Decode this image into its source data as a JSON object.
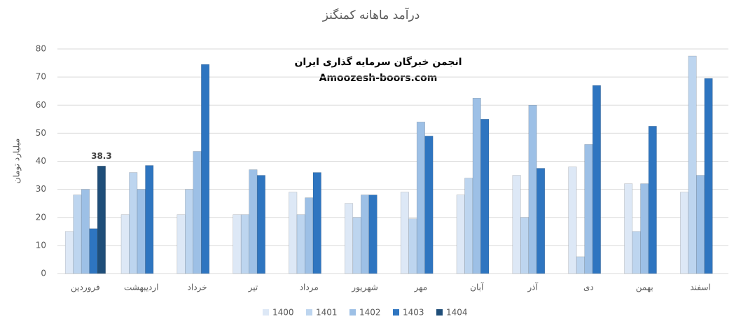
{
  "chart_data": {
    "type": "bar",
    "title": "درآمد ماهانه کمنگنز",
    "y_label": "میلیارد تومان",
    "annotations": [
      "انجمن خبرگان سرمایه گذاری ایران",
      "Amoozesh-boors.com"
    ],
    "categories": [
      "فروردین",
      "اردیبهشت",
      "خرداد",
      "تیر",
      "مرداد",
      "شهریور",
      "مهر",
      "آبان",
      "آذر",
      "دی",
      "بهمن",
      "اسفند"
    ],
    "series": [
      {
        "name": "1400",
        "color": "#dde8f6",
        "values": [
          15,
          21,
          21,
          21,
          29,
          25,
          29,
          28,
          35,
          38,
          32,
          29
        ]
      },
      {
        "name": "1401",
        "color": "#bdd5ef",
        "values": [
          28,
          36,
          30,
          21,
          21,
          20,
          19.5,
          34,
          20,
          6,
          15,
          77.5
        ]
      },
      {
        "name": "1402",
        "color": "#9dc0e6",
        "values": [
          30,
          30,
          43.5,
          37,
          27,
          28,
          54,
          62.5,
          60,
          46,
          32,
          35
        ]
      },
      {
        "name": "1403",
        "color": "#2e75c0",
        "values": [
          16,
          38.5,
          74.5,
          35,
          36,
          28,
          49,
          55,
          37.5,
          67,
          52.5,
          69.5
        ]
      },
      {
        "name": "1404",
        "color": "#1f4e79",
        "values": [
          38.3,
          null,
          null,
          null,
          null,
          null,
          null,
          null,
          null,
          null,
          null,
          null
        ]
      }
    ],
    "ylim": [
      0,
      80
    ],
    "yticks": [
      0,
      10,
      20,
      30,
      40,
      50,
      60,
      70,
      80
    ],
    "grid": true,
    "legend": "bottom"
  }
}
